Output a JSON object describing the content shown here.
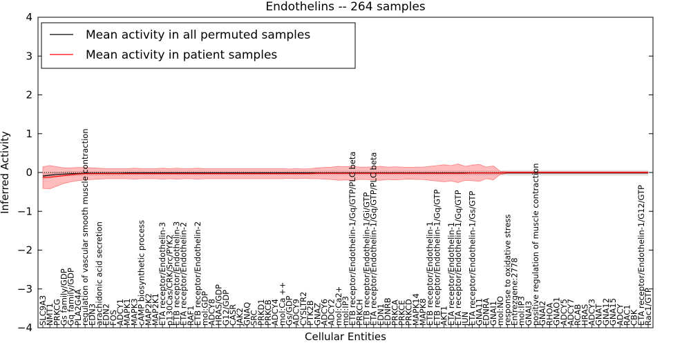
{
  "chart_data": {
    "type": "line",
    "title": "Endothelins -- 264 samples",
    "xlabel": "Cellular Entities",
    "ylabel": "Inferred Activity",
    "ylim": [
      -4,
      4
    ],
    "yticks": [
      -4,
      -3,
      -2,
      -1,
      0,
      1,
      2,
      3,
      4
    ],
    "categories": [
      "SLC9A3",
      "NMT1",
      "PRKCG",
      "Gs family/GDP",
      "Gq family/GDP",
      "PLA2G4A",
      "regulation of vascular smooth muscle contraction",
      "EDN3",
      "arachidonic acid secretion",
      "EDN2",
      "FOS",
      "ADCY1",
      "MAPK1",
      "MAPK3",
      "cAMP biosynthetic process",
      "MAP2K2",
      "MAP2K1",
      "ETA receptor/Endothelin-3",
      "p130Cas/CRK/Src/PYK2",
      "ETB receptor/Endothelin-3",
      "ETA receptor/Endothelin-2",
      "RAF1",
      "ETB receptor/Endothelin-2",
      "mol:GDP",
      "ADCY8",
      "HRAS/GDP",
      "G12/GDP",
      "CASR",
      "JAK2",
      "GNAQ",
      "SRC",
      "PRKD1",
      "PRKCB",
      "ADCY4",
      "mol:Ca ++",
      "Gs/GDP",
      "ADCY9",
      "CYSLTR2",
      "PTK2B",
      "GNAZ",
      "ADCY6",
      "ADCY2",
      "mol:Ca2+",
      "mol:IP3",
      "ETB receptor/Endothelin-1/Gq/GTP/PLC beta",
      "PRKCH",
      "ETB receptor/Endothelin-1/Gi/GTP",
      "ETA receptor/Endothelin-1/Gq/GTP/PLC beta",
      "EDN1",
      "EDNRB",
      "PRKCA",
      "PRKCE",
      "PRKCD",
      "MAPK14",
      "MAPK8",
      "ETB receptor/Endothelin-1",
      "ETB receptor/Endothelin-1/Gq/GTP",
      "AKT1",
      "ETA receptor/Endothelin-1",
      "ETA receptor/Endothelin-1/Gq/GTP",
      "JUN",
      "ETA receptor/Endothelin-1/Gs/GTP",
      "GNA11",
      "EDNRA",
      "GNAI1",
      "mol:NO",
      "response to oxidative stress",
      "Entrezgene:2778",
      "mol:IP3",
      "GNAI3",
      "positive regulation of muscle contraction",
      "GNAI2",
      "RHOA",
      "GNAO1",
      "ADCY5",
      "ADCY7",
      "RCAB",
      "HRAS",
      "ADCY3",
      "GNAT",
      "GNA12",
      "GNA15",
      "ADCY",
      "RAC1",
      "CBK",
      "ETA receptor/Endothelin-1/G12/GTP",
      "Rac1/GTP"
    ],
    "series": [
      {
        "name": "Mean activity in all permuted samples",
        "color": "#000000",
        "values": [
          -0.09,
          -0.07,
          -0.05,
          -0.04,
          -0.03,
          -0.03,
          -0.02,
          -0.02,
          -0.02,
          -0.02,
          -0.02,
          -0.02,
          -0.01,
          -0.01,
          -0.01,
          -0.01,
          -0.01,
          -0.01,
          -0.01,
          -0.01,
          -0.01,
          -0.01,
          -0.01,
          -0.01,
          -0.01,
          -0.01,
          -0.01,
          -0.01,
          -0.01,
          -0.01,
          -0.01,
          -0.01,
          -0.01,
          -0.01,
          -0.01,
          -0.01,
          -0.01,
          -0.01,
          -0.01,
          -0.01,
          -0.01,
          -0.01,
          -0.01,
          -0.01,
          -0.01,
          -0.01,
          -0.01,
          -0.01,
          -0.01,
          -0.01,
          -0.01,
          -0.01,
          -0.01,
          -0.01,
          -0.01,
          -0.01,
          -0.01,
          -0.01,
          -0.01,
          -0.01,
          -0.01,
          -0.01,
          -0.01,
          -0.01,
          -0.01,
          -0.01,
          -0.01,
          -0.01,
          -0.01,
          -0.01,
          -0.01,
          -0.01,
          -0.01,
          -0.01,
          -0.01,
          -0.01,
          -0.01,
          -0.01,
          -0.01,
          -0.01,
          -0.01,
          -0.01,
          -0.01,
          -0.01,
          -0.01,
          -0.01,
          -0.01
        ],
        "band_halfwidth": [
          0.08,
          0.08,
          0.07,
          0.06,
          0.06,
          0.06,
          0.06,
          0.06,
          0.06,
          0.06,
          0.06,
          0.06,
          0.06,
          0.06,
          0.06,
          0.06,
          0.06,
          0.06,
          0.06,
          0.06,
          0.06,
          0.06,
          0.06,
          0.06,
          0.06,
          0.06,
          0.06,
          0.06,
          0.06,
          0.06,
          0.06,
          0.06,
          0.06,
          0.06,
          0.06,
          0.06,
          0.06,
          0.06,
          0.06,
          0.06,
          0.06,
          0.06,
          0.06,
          0.06,
          0.06,
          0.06,
          0.06,
          0.06,
          0.06,
          0.06,
          0.06,
          0.06,
          0.06,
          0.06,
          0.06,
          0.06,
          0.06,
          0.06,
          0.06,
          0.06,
          0.06,
          0.06,
          0.06,
          0.06,
          0.06,
          0.06,
          0.07,
          0.07,
          0.07,
          0.07,
          0.07,
          0.07,
          0.07,
          0.07,
          0.07,
          0.07,
          0.07,
          0.07,
          0.07,
          0.07,
          0.07,
          0.07,
          0.07,
          0.07,
          0.07,
          0.07,
          0.07
        ]
      },
      {
        "name": "Mean activity in patient samples",
        "color": "#ff0000",
        "values": [
          -0.13,
          -0.12,
          -0.1,
          -0.08,
          -0.06,
          -0.04,
          -0.03,
          -0.03,
          -0.03,
          -0.03,
          -0.03,
          -0.03,
          -0.03,
          -0.03,
          -0.03,
          -0.03,
          -0.03,
          -0.03,
          -0.03,
          -0.03,
          -0.03,
          -0.03,
          -0.03,
          -0.03,
          -0.03,
          -0.03,
          -0.03,
          -0.03,
          -0.03,
          -0.03,
          -0.03,
          -0.03,
          -0.03,
          -0.03,
          -0.03,
          -0.03,
          -0.03,
          -0.03,
          -0.03,
          -0.02,
          -0.02,
          -0.02,
          -0.02,
          -0.02,
          -0.02,
          -0.02,
          -0.02,
          -0.02,
          -0.02,
          -0.02,
          -0.02,
          -0.02,
          -0.02,
          -0.02,
          -0.02,
          -0.02,
          -0.02,
          -0.02,
          -0.02,
          -0.02,
          -0.02,
          -0.01,
          -0.01,
          -0.01,
          -0.01,
          -0.01,
          0,
          0,
          0,
          0,
          0,
          0,
          0,
          0,
          0,
          0,
          0,
          0,
          0,
          0,
          0,
          0,
          0,
          0,
          0,
          0,
          0
        ],
        "band_halfwidth": [
          0.28,
          0.3,
          0.25,
          0.2,
          0.18,
          0.17,
          0.16,
          0.15,
          0.14,
          0.13,
          0.13,
          0.13,
          0.13,
          0.14,
          0.13,
          0.13,
          0.13,
          0.14,
          0.13,
          0.14,
          0.13,
          0.13,
          0.14,
          0.13,
          0.13,
          0.13,
          0.13,
          0.13,
          0.13,
          0.13,
          0.13,
          0.13,
          0.13,
          0.13,
          0.13,
          0.12,
          0.13,
          0.12,
          0.13,
          0.14,
          0.15,
          0.16,
          0.18,
          0.17,
          0.18,
          0.16,
          0.16,
          0.17,
          0.18,
          0.16,
          0.17,
          0.16,
          0.15,
          0.16,
          0.16,
          0.18,
          0.2,
          0.22,
          0.2,
          0.24,
          0.18,
          0.2,
          0.22,
          0.15,
          0.18,
          0.04,
          0.02,
          0.02,
          0.02,
          0.02,
          0.02,
          0.02,
          0.02,
          0.02,
          0.02,
          0.02,
          0.02,
          0.02,
          0.02,
          0.02,
          0.02,
          0.02,
          0.02,
          0.02,
          0.02,
          0.02,
          0.02
        ]
      }
    ],
    "legend": {
      "position": "top-left"
    }
  }
}
